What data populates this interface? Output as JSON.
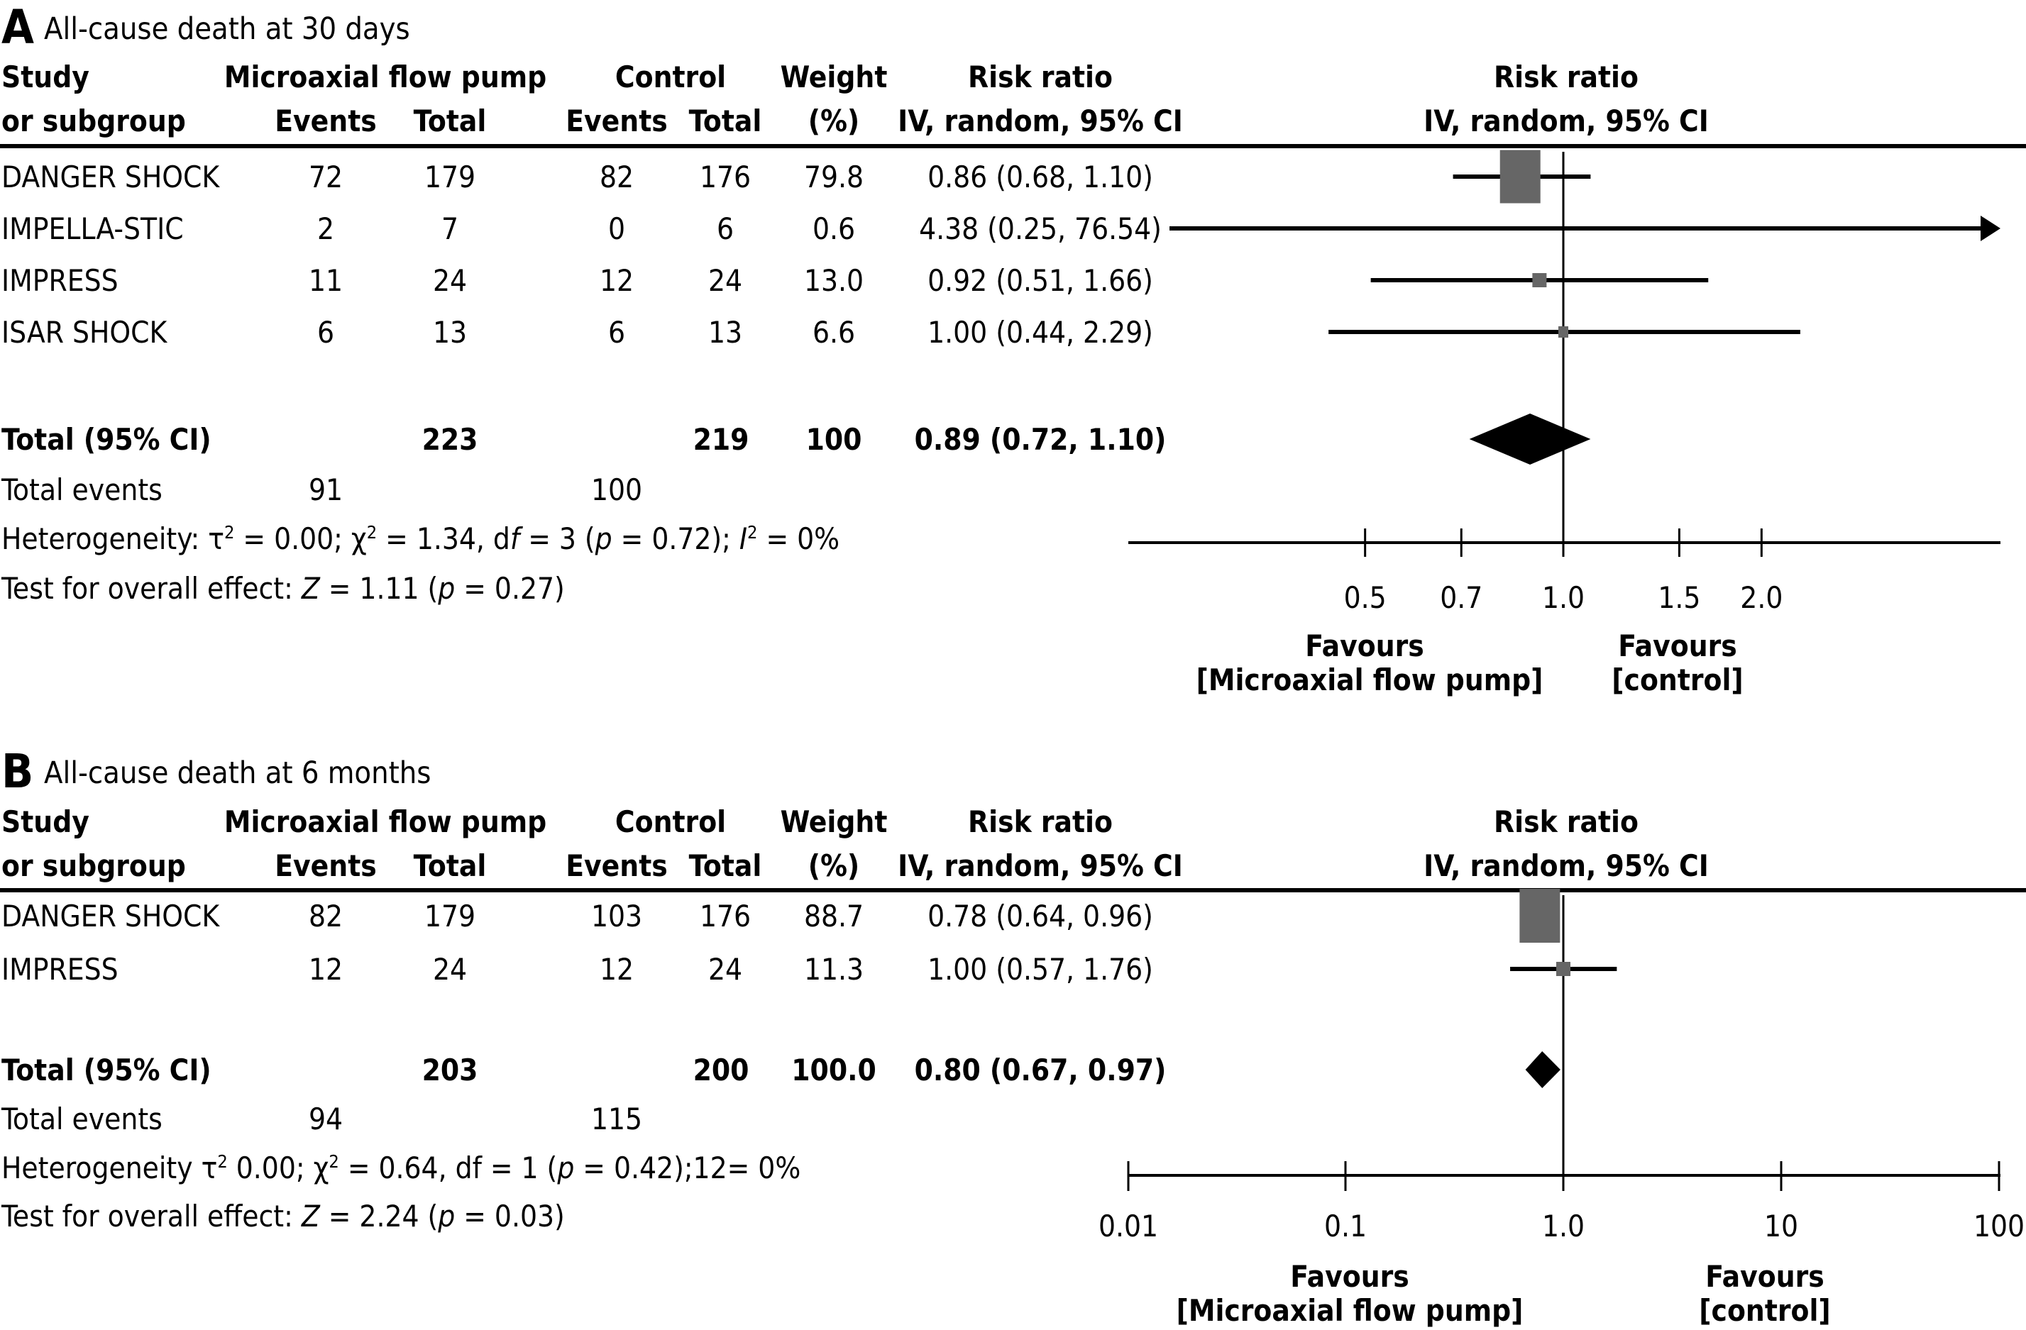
{
  "colors": {
    "ink": "#000000",
    "square": "#666666",
    "background": "#ffffff"
  },
  "headers": {
    "study_line1": "Study",
    "study_line2": "or subgroup",
    "pump_group": "Microaxial flow pump",
    "control_group": "Control",
    "events": "Events",
    "total": "Total",
    "weight_line1": "Weight",
    "weight_line2": "(%)",
    "rr_line1": "Risk ratio",
    "rr_line2": "IV, random, 95% CI",
    "plot_line1": "Risk ratio",
    "plot_line2": "IV, random, 95% CI"
  },
  "chart_data": [
    {
      "type": "forest",
      "panel_letter": "A",
      "title": "All-cause death at 30 days",
      "scale": "log",
      "xlim": [
        0.217,
        4.6
      ],
      "ticks": [
        0.5,
        0.7,
        1.0,
        1.5,
        2.0
      ],
      "tick_labels": [
        "0.5",
        "0.7",
        "1.0",
        "1.5",
        "2.0"
      ],
      "null_line": 1.0,
      "favours_left": [
        "Favours",
        "[Microaxial flow pump]"
      ],
      "favours_right": [
        "Favours",
        "[control]"
      ],
      "studies": [
        {
          "name": "DANGER SHOCK",
          "pump_events": "72",
          "pump_total": "179",
          "ctrl_events": "82",
          "ctrl_total": "176",
          "weight": "79.8",
          "rr_text": "0.86 (0.68, 1.10)",
          "rr": 0.86,
          "lo": 0.68,
          "hi": 1.1,
          "w": 79.8
        },
        {
          "name": "IMPELLA-STIC",
          "pump_events": "2",
          "pump_total": "7",
          "ctrl_events": "0",
          "ctrl_total": "6",
          "weight": "0.6",
          "rr_text": "4.38 (0.25, 76.54)",
          "rr": 4.38,
          "lo": 0.25,
          "hi": 76.54,
          "w": 0.6
        },
        {
          "name": "IMPRESS",
          "pump_events": "11",
          "pump_total": "24",
          "ctrl_events": "12",
          "ctrl_total": "24",
          "weight": "13.0",
          "rr_text": "0.92 (0.51, 1.66)",
          "rr": 0.92,
          "lo": 0.51,
          "hi": 1.66,
          "w": 13.0
        },
        {
          "name": "ISAR SHOCK",
          "pump_events": "6",
          "pump_total": "13",
          "ctrl_events": "6",
          "ctrl_total": "13",
          "weight": "6.6",
          "rr_text": "1.00 (0.44, 2.29)",
          "rr": 1.0,
          "lo": 0.44,
          "hi": 2.29,
          "w": 6.6
        }
      ],
      "total": {
        "label": "Total (95% CI)",
        "pump_total": "223",
        "ctrl_total": "219",
        "weight": "100",
        "rr_text": "0.89 (0.72, 1.10)",
        "rr": 0.89,
        "lo": 0.72,
        "hi": 1.1
      },
      "total_events": {
        "label": "Total events",
        "pump": "91",
        "ctrl": "100"
      },
      "heterogeneity": {
        "prefix": "Heterogeneity: τ",
        "tau_rest": " = 0.00; χ",
        "chi_rest": " = 1.34, d",
        "df_f": "f",
        "df_rest": " = 3 (",
        "p": "p",
        "p_rest": " = 0.72); ",
        "i": "I",
        "i_rest": " = 0%"
      },
      "overall": {
        "prefix": "Test for overall effect: ",
        "z": "Z",
        "z_rest": " = 1.11 (",
        "p": "p",
        "p_rest": " = 0.27)"
      }
    },
    {
      "type": "forest",
      "panel_letter": "B",
      "title": "All-cause death at 6 months",
      "scale": "log",
      "xlim": [
        0.01,
        100
      ],
      "ticks": [
        0.01,
        0.1,
        1.0,
        10,
        100
      ],
      "tick_labels": [
        "0.01",
        "0.1",
        "1.0",
        "10",
        "100"
      ],
      "null_line": 1.0,
      "favours_left": [
        "Favours",
        "[Microaxial flow pump]"
      ],
      "favours_right": [
        "Favours",
        "[control]"
      ],
      "studies": [
        {
          "name": "DANGER SHOCK",
          "pump_events": "82",
          "pump_total": "179",
          "ctrl_events": "103",
          "ctrl_total": "176",
          "weight": "88.7",
          "rr_text": "0.78 (0.64, 0.96)",
          "rr": 0.78,
          "lo": 0.64,
          "hi": 0.96,
          "w": 88.7
        },
        {
          "name": "IMPRESS",
          "pump_events": "12",
          "pump_total": "24",
          "ctrl_events": "12",
          "ctrl_total": "24",
          "weight": "11.3",
          "rr_text": "1.00 (0.57, 1.76)",
          "rr": 1.0,
          "lo": 0.57,
          "hi": 1.76,
          "w": 11.3
        }
      ],
      "total": {
        "label": "Total (95% CI)",
        "pump_total": "203",
        "ctrl_total": "200",
        "weight": "100.0",
        "rr_text": "0.80 (0.67, 0.97)",
        "rr": 0.8,
        "lo": 0.67,
        "hi": 0.97
      },
      "total_events": {
        "label": "Total events",
        "pump": "94",
        "ctrl": "115"
      },
      "heterogeneity": {
        "prefix": "Heterogeneity τ",
        "tau_rest": " 0.00; χ",
        "chi_rest": " = 0.64, df = 1 (",
        "p": "p",
        "p_rest": " = 0.42);12= 0%"
      },
      "overall": {
        "prefix": "Test for overall effect: ",
        "z": "Z",
        "z_rest": " = 2.24 (",
        "p": "p",
        "p_rest": " = 0.03)"
      }
    }
  ]
}
